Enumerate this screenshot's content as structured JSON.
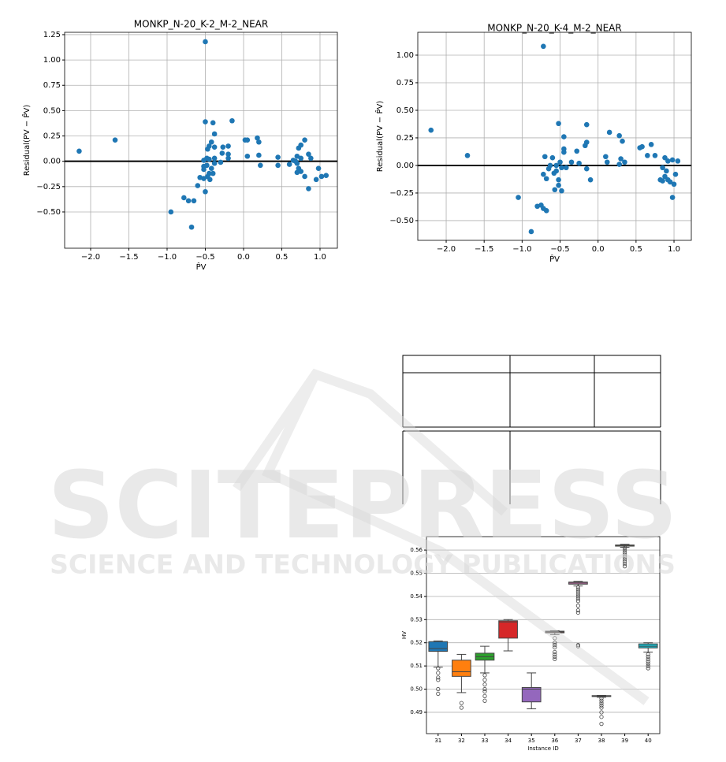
{
  "chart_data": [
    {
      "type": "scatter",
      "title": "MONKP_N-20_K-2_M-2_NEAR",
      "x_label": "P̂V",
      "y_label": "Residual(PV − P̂V)",
      "color": "#1f77b4",
      "grid": true,
      "hline": 0,
      "xlim": [
        -2.34,
        1.227
      ],
      "ylim": [
        -0.858,
        1.273
      ],
      "xticks": [
        {
          "value": -2,
          "label": "−2.0"
        },
        {
          "value": -1.5,
          "label": "−1.5"
        },
        {
          "value": -1,
          "label": "−1.0"
        },
        {
          "value": -0.5,
          "label": "−0.5"
        },
        {
          "value": 0,
          "label": "0.0"
        },
        0.5,
        {
          "value": 1,
          "label": "1.0"
        }
      ],
      "yticks": [
        {
          "value": -0.5,
          "label": "−0.50"
        },
        {
          "value": -0.25,
          "label": "−0.25"
        },
        {
          "value": 0,
          "label": "0.00"
        },
        0.25,
        {
          "value": 0.5,
          "label": "0.50"
        },
        0.75,
        {
          "value": 1,
          "label": "1.00"
        },
        1.25
      ],
      "x": [
        -2.15,
        -1.68,
        -0.5,
        -0.5,
        -0.15,
        -0.4,
        -0.38,
        -0.42,
        -0.45,
        -0.47,
        -0.38,
        -0.27,
        -0.2,
        -0.2,
        -0.2,
        -0.28,
        -0.48,
        -0.52,
        -0.45,
        -0.38,
        -0.3,
        -0.48,
        -0.52,
        -0.42,
        -0.38,
        -0.52,
        -0.45,
        -0.4,
        -0.47,
        -0.52,
        -0.57,
        -0.44,
        -0.5,
        -0.6,
        -0.65,
        -0.72,
        -0.78,
        -0.95,
        -0.68,
        0.02,
        0.05,
        0.18,
        0.2,
        0.05,
        0.2,
        0.22,
        0.45,
        0.45,
        0.6,
        0.65,
        0.7,
        0.72,
        0.75,
        0.8,
        0.7,
        0.72,
        0.7,
        0.75,
        0.8,
        0.85,
        0.88,
        0.85,
        0.95,
        0.98,
        1.02,
        1.08,
        0.68,
        0.75
      ],
      "values": [
        0.1,
        0.21,
        1.18,
        0.39,
        0.4,
        0.38,
        0.27,
        0.19,
        0.15,
        0.12,
        0.14,
        0.14,
        0.15,
        0.07,
        0.03,
        0.08,
        0.03,
        0.01,
        0.02,
        0.03,
        -0.01,
        -0.04,
        -0.05,
        -0.07,
        -0.02,
        -0.08,
        -0.12,
        -0.12,
        -0.15,
        -0.17,
        -0.16,
        -0.18,
        -0.3,
        -0.24,
        -0.39,
        -0.39,
        -0.36,
        -0.5,
        -0.65,
        0.21,
        0.21,
        0.23,
        0.19,
        0.05,
        0.06,
        -0.04,
        0.04,
        -0.04,
        -0.03,
        0.01,
        0.05,
        0.13,
        0.16,
        0.21,
        -0.02,
        -0.07,
        -0.11,
        -0.1,
        -0.15,
        0.07,
        0.03,
        -0.27,
        -0.18,
        -0.07,
        -0.15,
        -0.14,
        0.0,
        0.03
      ]
    },
    {
      "type": "scatter",
      "title": "MONKP_N-20_K-4_M-2_NEAR",
      "x_label": "P̂V",
      "y_label": "Residual(PV − P̂V)",
      "color": "#1f77b4",
      "grid": true,
      "hline": 0,
      "xlim": [
        -2.374,
        1.228
      ],
      "ylim": [
        -0.679,
        1.207
      ],
      "xticks": [
        {
          "value": -2,
          "label": "−2.0"
        },
        {
          "value": -1.5,
          "label": "−1.5"
        },
        {
          "value": -1,
          "label": "−1.0"
        },
        {
          "value": -0.5,
          "label": "−0.5"
        },
        {
          "value": 0,
          "label": "0.0"
        },
        0.5,
        {
          "value": 1,
          "label": "1.0"
        }
      ],
      "yticks": [
        {
          "value": -0.5,
          "label": "−0.50"
        },
        {
          "value": -0.25,
          "label": "−0.25"
        },
        {
          "value": 0,
          "label": "0.00"
        },
        0.25,
        {
          "value": 0.5,
          "label": "0.50"
        },
        0.75,
        {
          "value": 1,
          "label": "1.00"
        }
      ],
      "x": [
        -2.2,
        -1.72,
        -0.72,
        -0.52,
        -0.15,
        -0.45,
        -0.45,
        -0.45,
        -0.28,
        -0.15,
        -0.17,
        -0.35,
        -0.25,
        -0.5,
        -0.6,
        -0.7,
        -0.63,
        -0.55,
        -0.42,
        -0.65,
        -0.55,
        -0.48,
        -0.72,
        -0.68,
        -0.58,
        -0.52,
        -0.52,
        -0.48,
        -0.57,
        -0.15,
        -0.1,
        -1.05,
        -0.8,
        -0.75,
        -0.72,
        -0.68,
        -0.88,
        0.15,
        0.28,
        0.32,
        0.1,
        0.12,
        0.3,
        0.35,
        0.28,
        0.55,
        0.58,
        0.7,
        0.65,
        0.75,
        0.88,
        0.92,
        0.98,
        1.05,
        0.85,
        0.9,
        0.88,
        0.92,
        0.85,
        0.95,
        1.0,
        1.02,
        0.98,
        0.82
      ],
      "values": [
        0.32,
        0.09,
        1.08,
        0.38,
        0.37,
        0.26,
        0.15,
        0.12,
        0.13,
        0.21,
        0.18,
        0.03,
        0.02,
        0.03,
        0.07,
        0.08,
        0.0,
        0.0,
        -0.02,
        -0.03,
        -0.05,
        -0.02,
        -0.08,
        -0.12,
        -0.07,
        -0.13,
        -0.18,
        -0.23,
        -0.22,
        -0.03,
        -0.13,
        -0.29,
        -0.37,
        -0.36,
        -0.39,
        -0.41,
        -0.6,
        0.3,
        0.27,
        0.22,
        0.08,
        0.03,
        0.06,
        0.03,
        0.01,
        0.16,
        0.17,
        0.19,
        0.09,
        0.09,
        0.07,
        0.04,
        0.05,
        0.04,
        -0.02,
        -0.05,
        -0.1,
        -0.13,
        -0.14,
        -0.15,
        -0.17,
        -0.08,
        -0.29,
        -0.13
      ]
    },
    {
      "type": "box",
      "x_label": "Instance ID",
      "y_label": "HV",
      "grid": true,
      "ylim": [
        0.4808,
        0.5658
      ],
      "yticks": [
        0.49,
        {
          "value": 0.5,
          "label": "0.50"
        },
        0.51,
        0.52,
        0.53,
        0.54,
        0.55,
        0.56
      ],
      "categories": [
        "31",
        "32",
        "33",
        "34",
        "35",
        "36",
        "37",
        "38",
        "39",
        "40"
      ],
      "boxes": [
        {
          "color": "#1f77b4",
          "q1": 0.5163,
          "median": 0.5175,
          "q3": 0.5205,
          "whislo": 0.5095,
          "whishi": 0.5208,
          "fliers": [
            0.509,
            0.507,
            0.505,
            0.504,
            0.5,
            0.498
          ]
        },
        {
          "color": "#ff7f0e",
          "q1": 0.5055,
          "median": 0.5075,
          "q3": 0.5125,
          "whislo": 0.4985,
          "whishi": 0.515,
          "fliers": [
            0.494,
            0.492
          ]
        },
        {
          "color": "#2ca02c",
          "q1": 0.5125,
          "median": 0.514,
          "q3": 0.5155,
          "whislo": 0.507,
          "whishi": 0.5185,
          "fliers": [
            0.506,
            0.504,
            0.502,
            0.5,
            0.499,
            0.497,
            0.495
          ]
        },
        {
          "color": "#d62728",
          "q1": 0.522,
          "median": 0.529,
          "q3": 0.5295,
          "whislo": 0.5165,
          "whishi": 0.53,
          "fliers": []
        },
        {
          "color": "#9467bd",
          "q1": 0.4945,
          "median": 0.5,
          "q3": 0.5007,
          "whislo": 0.4915,
          "whishi": 0.507,
          "fliers": []
        },
        {
          "color": "#8c564b",
          "q1": 0.5243,
          "median": 0.5247,
          "q3": 0.525,
          "whislo": 0.5235,
          "whishi": 0.5252,
          "fliers": [
            0.522,
            0.52,
            0.519,
            0.518,
            0.516,
            0.515,
            0.514,
            0.513
          ]
        },
        {
          "color": "#e377c2",
          "q1": 0.5453,
          "median": 0.5458,
          "q3": 0.5462,
          "whislo": 0.5445,
          "whishi": 0.5465,
          "fliers": [
            0.544,
            0.543,
            0.542,
            0.541,
            0.54,
            0.539,
            0.538,
            0.536,
            0.534,
            0.533,
            0.519,
            0.5185
          ]
        },
        {
          "color": "#7f7f7f",
          "q1": 0.4968,
          "median": 0.497,
          "q3": 0.4972,
          "whislo": 0.4965,
          "whishi": 0.4973,
          "fliers": [
            0.496,
            0.495,
            0.494,
            0.493,
            0.492,
            0.49,
            0.488,
            0.485
          ]
        },
        {
          "color": "#bcbd22",
          "q1": 0.5617,
          "median": 0.562,
          "q3": 0.5622,
          "whislo": 0.5612,
          "whishi": 0.5625,
          "fliers": [
            0.561,
            0.56,
            0.559,
            0.558,
            0.557,
            0.556,
            0.555,
            0.554,
            0.553
          ]
        },
        {
          "color": "#17becf",
          "q1": 0.5178,
          "median": 0.5185,
          "q3": 0.5195,
          "whislo": 0.516,
          "whishi": 0.52,
          "fliers": [
            0.515,
            0.514,
            0.513,
            0.512,
            0.511,
            0.51,
            0.509
          ]
        }
      ]
    }
  ],
  "watermark": {
    "title": "SCITEPRESS",
    "subtitle": "SCIENCE AND TECHNOLOGY PUBLICATIONS"
  }
}
